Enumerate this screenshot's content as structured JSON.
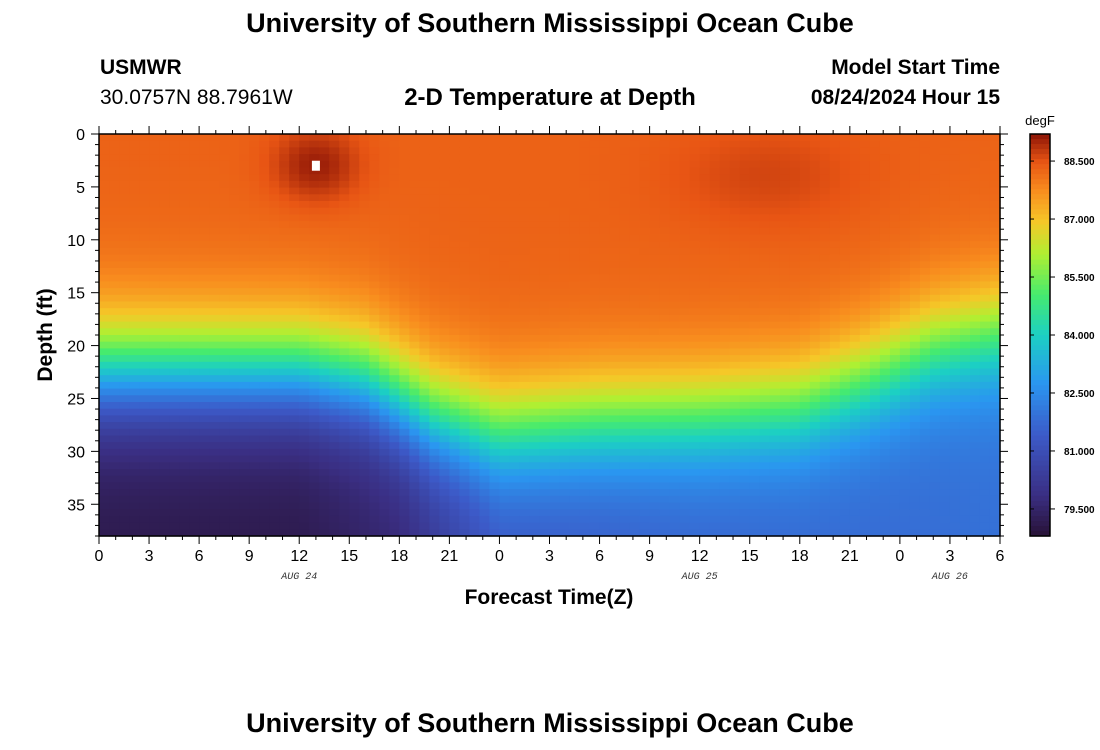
{
  "header": {
    "title": "University of Southern Mississippi Ocean Cube",
    "station": "USMWR",
    "coords": "30.0757N  88.7961W",
    "plot_title": "2-D Temperature at Depth",
    "model_start_label": "Model Start Time",
    "model_start_value": "08/24/2024 Hour 15"
  },
  "footer": {
    "title": "University of Southern Mississippi Ocean Cube"
  },
  "chart_data": {
    "type": "heatmap",
    "title": "2-D Temperature at Depth",
    "xlabel": "Forecast Time(Z)",
    "ylabel": "Depth (ft)",
    "x_range_hours": [
      0,
      54
    ],
    "x_tick_labels": [
      "0",
      "3",
      "6",
      "9",
      "12",
      "15",
      "18",
      "21",
      "0",
      "3",
      "6",
      "9",
      "12",
      "15",
      "18",
      "21",
      "0",
      "3",
      "6"
    ],
    "date_labels": [
      {
        "label": "AUG 24",
        "hour": 12
      },
      {
        "label": "AUG 25",
        "hour": 36
      },
      {
        "label": "AUG 26",
        "hour": 51
      }
    ],
    "y_range_ft": [
      0,
      38
    ],
    "y_ticks": [
      0,
      5,
      10,
      15,
      20,
      25,
      30,
      35
    ],
    "colorbar": {
      "unit": "degF",
      "min": 78.8,
      "max": 89.2,
      "tick_values": [
        88.5,
        87.0,
        85.5,
        84.0,
        82.5,
        81.0,
        79.5
      ],
      "tick_labels": [
        "88.500",
        "87.000",
        "85.500",
        "84.000",
        "82.500",
        "81.000",
        "79.500"
      ]
    },
    "fields": {
      "surface_temp_degF": 88.3,
      "warm_core": {
        "hour": 13,
        "depth_ft": 3,
        "temp_degF": 89.1
      },
      "thermocline_depth_ft": [
        {
          "hour": 0,
          "depth": 22.5
        },
        {
          "hour": 12,
          "depth": 22.5
        },
        {
          "hour": 16,
          "depth": 23.5
        },
        {
          "hour": 20,
          "depth": 27
        },
        {
          "hour": 24,
          "depth": 28.5
        },
        {
          "hour": 30,
          "depth": 27.5
        },
        {
          "hour": 36,
          "depth": 27
        },
        {
          "hour": 42,
          "depth": 26
        },
        {
          "hour": 46,
          "depth": 23.5
        },
        {
          "hour": 50,
          "depth": 20.5
        },
        {
          "hour": 54,
          "depth": 19
        }
      ],
      "deep_temp_degF": [
        {
          "hour": 0,
          "temp": 79.1
        },
        {
          "hour": 12,
          "temp": 79.1
        },
        {
          "hour": 18,
          "temp": 79.6
        },
        {
          "hour": 24,
          "temp": 81.2
        },
        {
          "hour": 36,
          "temp": 81.6
        },
        {
          "hour": 54,
          "temp": 81.9
        }
      ]
    }
  }
}
